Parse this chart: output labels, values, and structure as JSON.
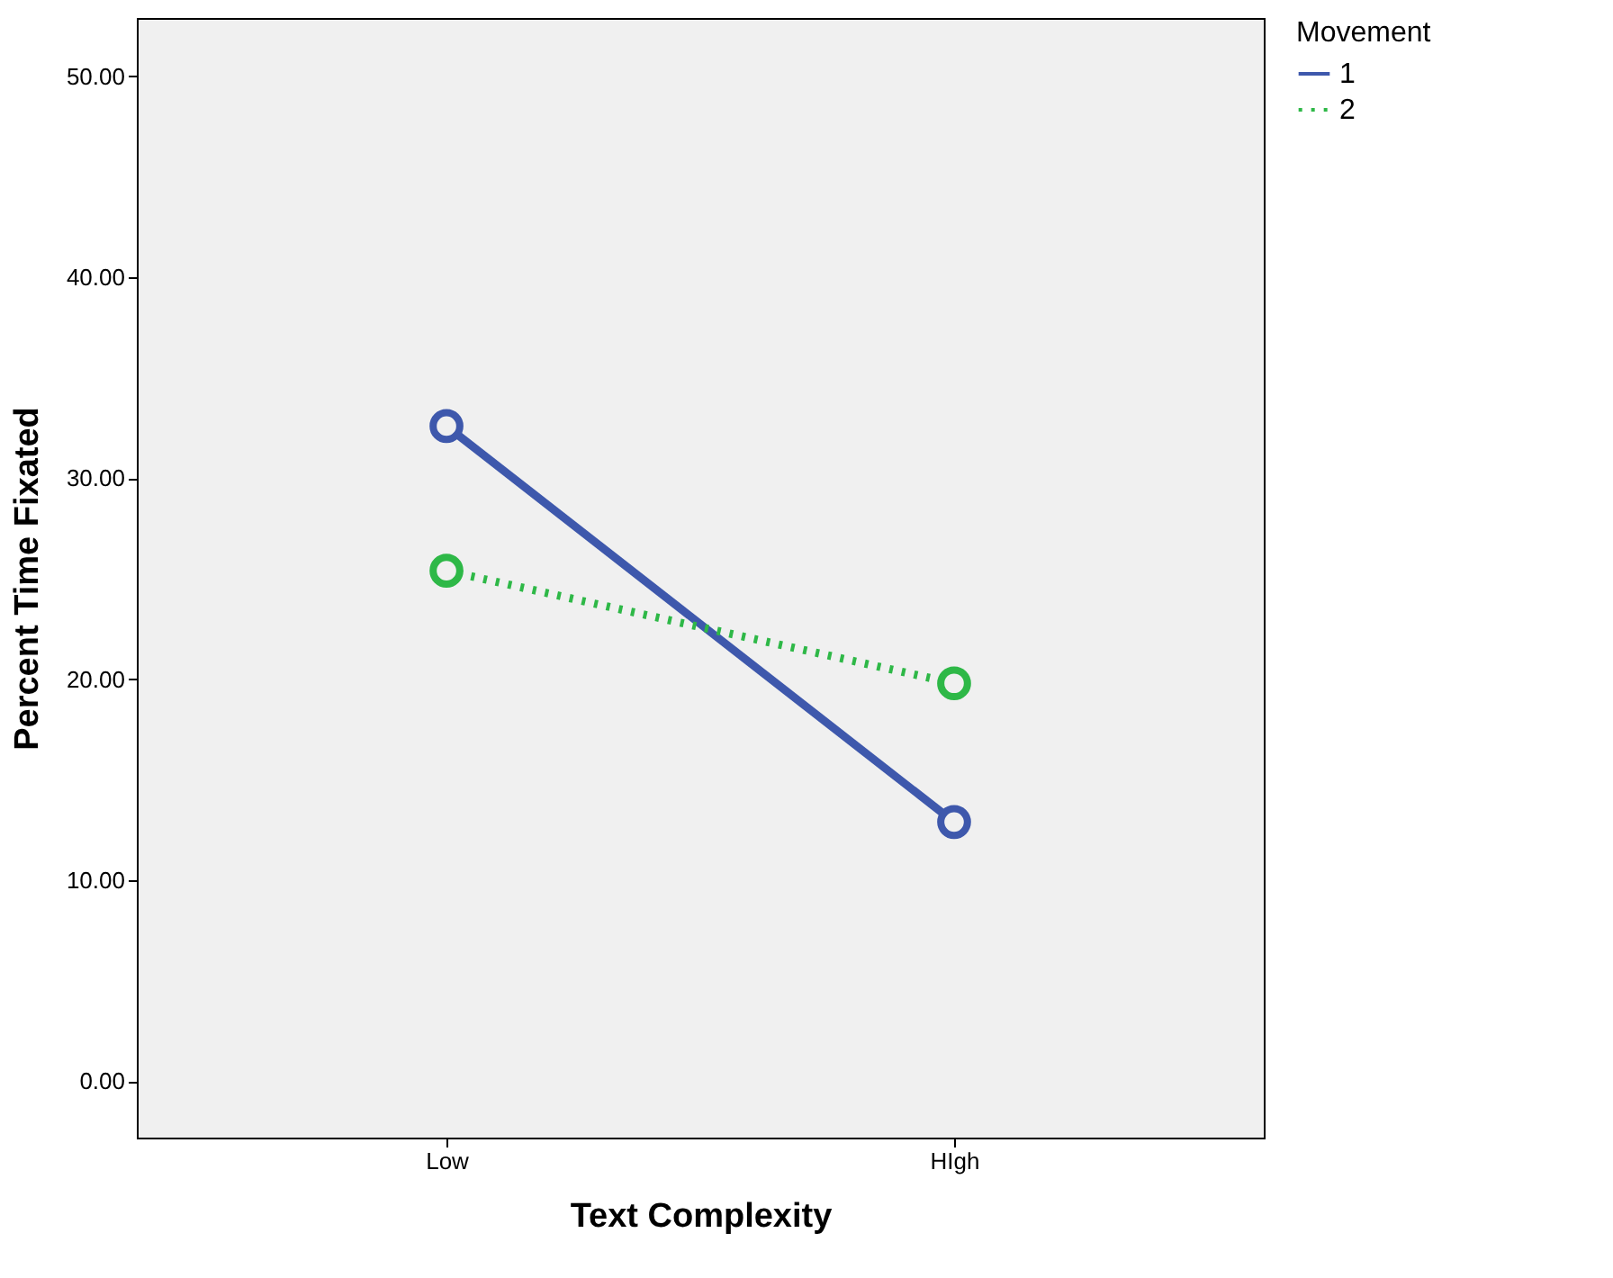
{
  "chart_data": {
    "type": "line",
    "xlabel": "Text Complexity",
    "ylabel": "Percent Time Fixated",
    "legend_title": "Movement",
    "categories": [
      "Low",
      "HIgh"
    ],
    "series": [
      {
        "name": "1",
        "color": "#3e58ac",
        "values": [
          32.6,
          12.9
        ],
        "line_style": "solid"
      },
      {
        "name": "2",
        "color": "#2eb847",
        "values": [
          25.4,
          19.8
        ],
        "line_style": "dotted"
      }
    ],
    "ylim": [
      -2.8,
      52.9
    ],
    "yticks": [
      {
        "value": 0,
        "label": "0.00"
      },
      {
        "value": 10,
        "label": "10.00"
      },
      {
        "value": 20,
        "label": "20.00"
      },
      {
        "value": 30,
        "label": "30.00"
      },
      {
        "value": 40,
        "label": "40.00"
      },
      {
        "value": 50,
        "label": "50.00"
      }
    ],
    "grid": false,
    "legend": "top right",
    "marker": "circle"
  }
}
